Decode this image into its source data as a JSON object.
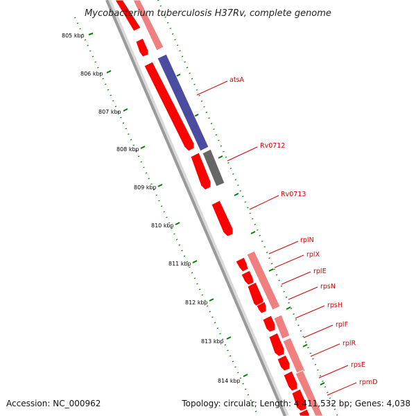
{
  "title": "Mycobacterium tuberculosis H37Rv, complete genome",
  "footer": {
    "accession": "Accession: NC_000962",
    "summary": "Topology: circular; Length: 4,411,532 bp; Genes: 4,038"
  },
  "scale_ticks": [
    "805 kbp",
    "806 kbp",
    "807 kbp",
    "808 kbp",
    "809 kbp",
    "810 kbp",
    "811 kbp",
    "812 kbp",
    "813 kbp",
    "814 kbp"
  ],
  "gene_labels": [
    "atsA",
    "Rv0712",
    "Rv0713",
    "rplN",
    "rplX",
    "rplE",
    "rpsN",
    "rpsH",
    "rplF",
    "rplR",
    "rpsE",
    "rpmD"
  ],
  "colors": {
    "cds": "#ff0000",
    "gene_track": "#f08080",
    "atsA": "#4b4ba0",
    "pseudo": "#666666",
    "backbone": "#9a9a9a",
    "ticks": "#008000",
    "labels": "#d40000"
  }
}
